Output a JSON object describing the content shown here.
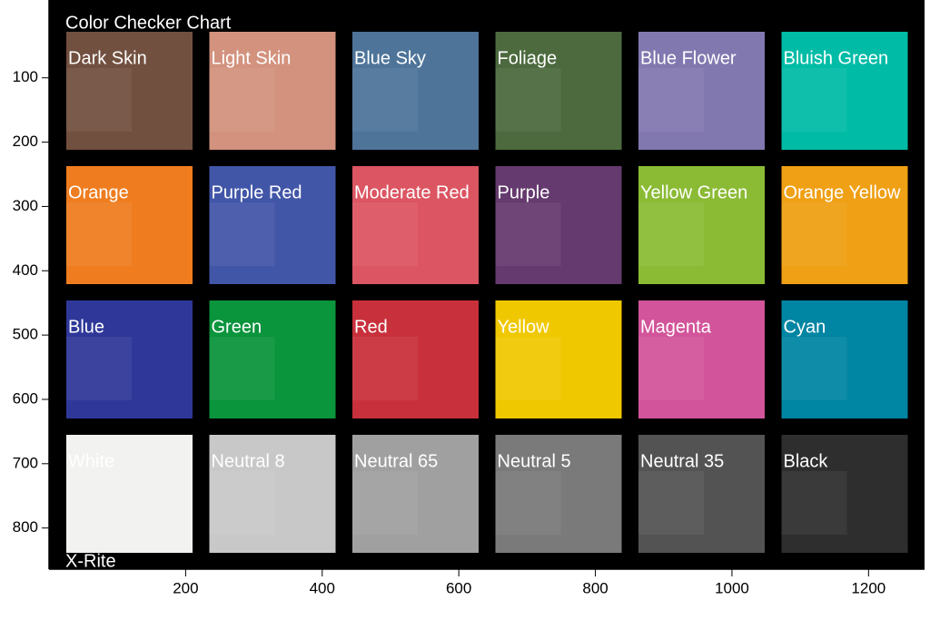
{
  "chart_data": {
    "type": "image",
    "title": "Color Checker Chart",
    "footer": "X-Rite",
    "xlim": [
      0,
      1282
    ],
    "xticks": [
      200,
      400,
      600,
      800,
      1000,
      1200
    ],
    "ylim": [
      -21,
      864
    ],
    "yticks": [
      100,
      200,
      300,
      400,
      500,
      600,
      700,
      800
    ],
    "y_reversed": true,
    "columns": 6,
    "patches": [
      {
        "name": "Dark Skin",
        "color": "#72503f"
      },
      {
        "name": "Light Skin",
        "color": "#d2927e"
      },
      {
        "name": "Blue Sky",
        "color": "#4e7499"
      },
      {
        "name": "Foliage",
        "color": "#4c6a3e"
      },
      {
        "name": "Blue Flower",
        "color": "#8278b0"
      },
      {
        "name": "Bluish Green",
        "color": "#00bca6"
      },
      {
        "name": "Orange",
        "color": "#ef7d1f"
      },
      {
        "name": "Purple Red",
        "color": "#4256a8"
      },
      {
        "name": "Moderate Red",
        "color": "#dc5562"
      },
      {
        "name": "Purple",
        "color": "#653a6e"
      },
      {
        "name": "Yellow Green",
        "color": "#8bbb35"
      },
      {
        "name": "Orange Yellow",
        "color": "#f0a014"
      },
      {
        "name": "Blue",
        "color": "#2f3898"
      },
      {
        "name": "Green",
        "color": "#0a943c"
      },
      {
        "name": "Red",
        "color": "#c8303c"
      },
      {
        "name": "Yellow",
        "color": "#f0c800"
      },
      {
        "name": "Magenta",
        "color": "#d2549a"
      },
      {
        "name": "Cyan",
        "color": "#0085a2"
      },
      {
        "name": "White",
        "color": "#f2f2f0"
      },
      {
        "name": "Neutral 8",
        "color": "#c8c8c8"
      },
      {
        "name": "Neutral 65",
        "color": "#a0a0a0"
      },
      {
        "name": "Neutral 5",
        "color": "#7a7a7a"
      },
      {
        "name": "Neutral 35",
        "color": "#535353"
      },
      {
        "name": "Black",
        "color": "#2e2e2e"
      }
    ]
  }
}
